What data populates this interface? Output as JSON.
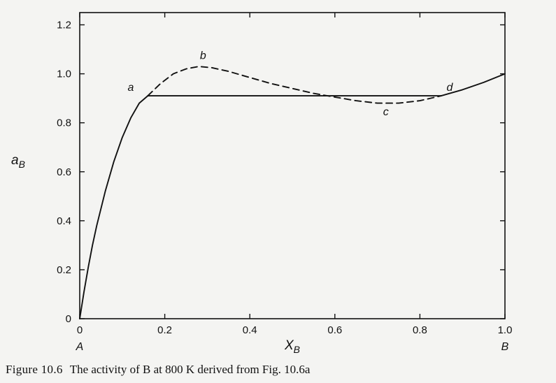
{
  "chart_data": {
    "type": "line",
    "xlabel_main": "X",
    "xlabel_sub": "B",
    "ylabel_main": "a",
    "ylabel_sub": "B",
    "xlim": [
      0,
      1.0
    ],
    "ylim": [
      0,
      1.25
    ],
    "x_ticks": [
      "0",
      "0.2",
      "0.4",
      "0.6",
      "0.8",
      "1.0"
    ],
    "y_ticks": [
      "0",
      "0.2",
      "0.4",
      "0.6",
      "0.8",
      "1.0",
      "1.2"
    ],
    "x_end_labels": {
      "left": "A",
      "right": "B"
    },
    "grid": false,
    "series": [
      {
        "style": "solid",
        "x": [
          0,
          0.01,
          0.02,
          0.03,
          0.04,
          0.06,
          0.08,
          0.1,
          0.12,
          0.14,
          0.16
        ],
        "y": [
          0,
          0.11,
          0.21,
          0.3,
          0.38,
          0.52,
          0.64,
          0.74,
          0.82,
          0.88,
          0.91
        ]
      },
      {
        "style": "dashed",
        "x": [
          0.16,
          0.19,
          0.22,
          0.25,
          0.28,
          0.31,
          0.35,
          0.4,
          0.45,
          0.5,
          0.55,
          0.6,
          0.65,
          0.7,
          0.75,
          0.8,
          0.85
        ],
        "y": [
          0.91,
          0.96,
          1.0,
          1.02,
          1.03,
          1.025,
          1.01,
          0.985,
          0.96,
          0.94,
          0.92,
          0.905,
          0.89,
          0.88,
          0.88,
          0.89,
          0.91
        ]
      },
      {
        "style": "solid",
        "x": [
          0.85,
          0.9,
          0.95,
          1.0
        ],
        "y": [
          0.91,
          0.935,
          0.965,
          1.0
        ]
      },
      {
        "style": "solid",
        "x": [
          0.16,
          0.85
        ],
        "y": [
          0.91,
          0.91
        ]
      }
    ],
    "annotations": [
      {
        "text": "a",
        "x": 0.12,
        "y": 0.93
      },
      {
        "text": "b",
        "x": 0.29,
        "y": 1.06
      },
      {
        "text": "c",
        "x": 0.72,
        "y": 0.83
      },
      {
        "text": "d",
        "x": 0.87,
        "y": 0.93
      }
    ]
  },
  "caption": {
    "number": "Figure 10.6",
    "text": "The activity of B at 800 K derived from Fig. 10.6a"
  }
}
